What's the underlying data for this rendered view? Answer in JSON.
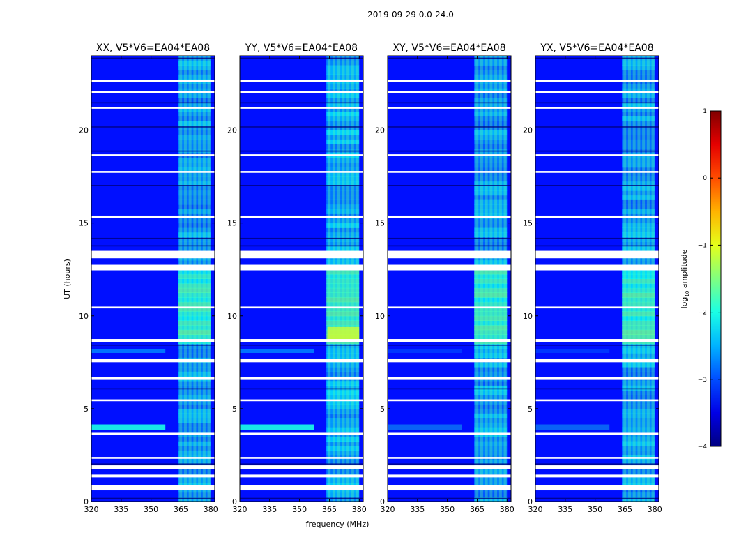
{
  "chart_data": {
    "type": "heatmap",
    "suptitle": "2019-09-29 0.0-24.0",
    "xlabel": "frequency (MHz)",
    "ylabel": "UT (hours)",
    "xlim": [
      320,
      382
    ],
    "ylim": [
      0,
      24
    ],
    "xticks": [
      320,
      335,
      350,
      365,
      380
    ],
    "yticks": [
      0,
      5,
      10,
      15,
      20
    ],
    "panels": [
      {
        "title": "XX, V5*V6=EA04*EA08",
        "rfi_strength": 0.55,
        "broadband_strength": 0.9
      },
      {
        "title": "YY, V5*V6=EA04*EA08",
        "rfi_strength": 0.8,
        "broadband_strength": 0.9
      },
      {
        "title": "XY, V5*V6=EA04*EA08",
        "rfi_strength": 0.6,
        "broadband_strength": 0.35
      },
      {
        "title": "YX, V5*V6=EA04*EA08",
        "rfi_strength": 0.6,
        "broadband_strength": 0.35
      }
    ],
    "rfi_band_mhz": [
      363.5,
      380
    ],
    "strong_rfi_hours": [
      [
        8.5,
        12.5
      ]
    ],
    "flagged_gaps_hours": [
      [
        0.6,
        0.9
      ],
      [
        1.3,
        1.45
      ],
      [
        1.75,
        1.95
      ],
      [
        2.3,
        2.4
      ],
      [
        3.6,
        3.7
      ],
      [
        5.4,
        5.5
      ],
      [
        6.55,
        6.7
      ],
      [
        7.5,
        7.7
      ],
      [
        8.6,
        8.75
      ],
      [
        10.4,
        10.5
      ],
      [
        12.45,
        12.75
      ],
      [
        13.1,
        13.5
      ],
      [
        15.25,
        15.4
      ],
      [
        17.7,
        17.8
      ],
      [
        18.6,
        18.7
      ],
      [
        21.15,
        21.25
      ],
      [
        22.0,
        22.1
      ],
      [
        22.6,
        22.7
      ]
    ],
    "colorbar": {
      "label": "log10 amplitude",
      "range": [
        -4,
        1
      ],
      "ticks": [
        -4,
        -3,
        -2,
        -1,
        0,
        1
      ],
      "colormap": "jet"
    }
  }
}
